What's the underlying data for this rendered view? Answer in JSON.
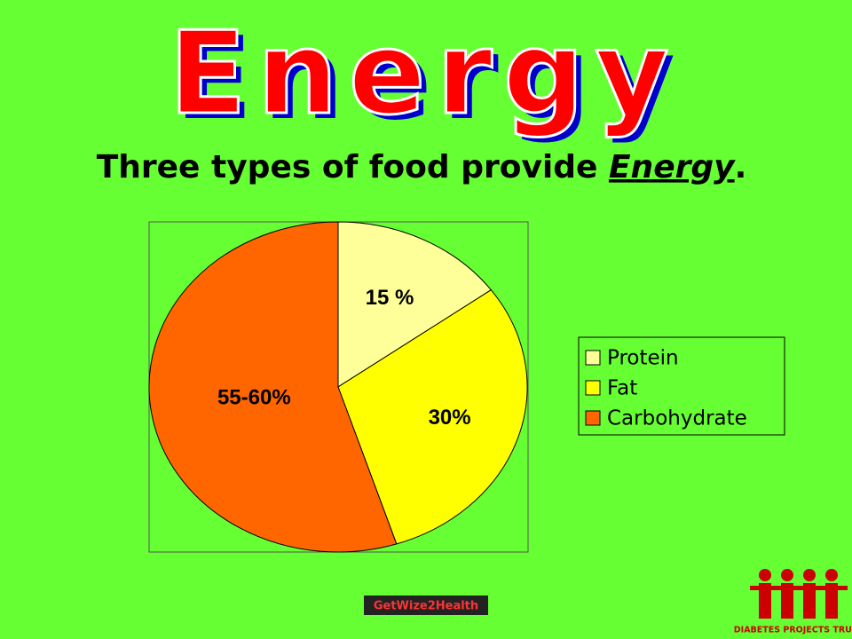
{
  "chart_data": {
    "type": "pie",
    "title": "Energy",
    "subtitle": [
      "Three types of food provide ",
      "Energy",
      "."
    ],
    "categories": [
      "Protein",
      "Fat",
      "Carbohydrate"
    ],
    "values": [
      15,
      30,
      55
    ],
    "value_labels": [
      "15 %",
      "30%",
      "55-60%"
    ],
    "colors": [
      "#FFFF99",
      "#FFFF00",
      "#FF6600"
    ],
    "legend": "right"
  },
  "footer": {
    "left_logo": "GetWize2Health",
    "right_logo": "DIABETES PROJECTS TRUST"
  }
}
